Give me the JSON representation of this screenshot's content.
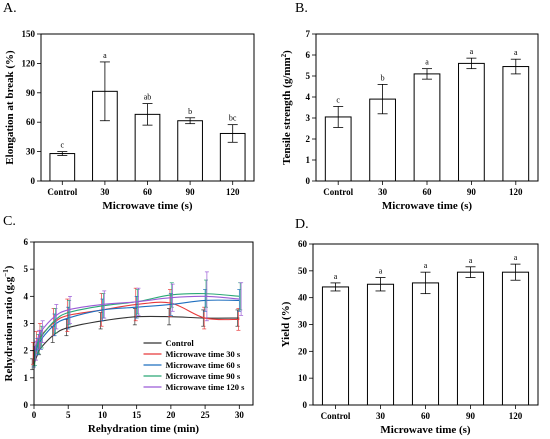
{
  "chart_data": [
    {
      "panel": "A.",
      "type": "bar",
      "categories": [
        "Control",
        "30",
        "60",
        "90",
        "120"
      ],
      "values": [
        28,
        91.5,
        68,
        61.5,
        48.5
      ],
      "errors": [
        2,
        30,
        11,
        3,
        9
      ],
      "letters": [
        "c",
        "a",
        "ab",
        "b",
        "bc"
      ],
      "xlabel": "Microwave time (s)",
      "ylabel": "Elongation at break (%)",
      "ylim": [
        0,
        150
      ],
      "yticks": [
        "0",
        "30",
        "60",
        "90",
        "120",
        "150"
      ],
      "bar_color": "#ffffff"
    },
    {
      "panel": "B.",
      "type": "bar",
      "categories": [
        "Control",
        "30",
        "60",
        "90",
        "120"
      ],
      "values": [
        3.05,
        3.9,
        5.1,
        5.6,
        5.45
      ],
      "errors": [
        0.5,
        0.7,
        0.25,
        0.25,
        0.35
      ],
      "letters": [
        "c",
        "b",
        "a",
        "a",
        "a"
      ],
      "xlabel": "Microwave time (s)",
      "ylabel_parts": [
        "Tensile strength (g/mm",
        "2",
        ")"
      ],
      "ylim": [
        0,
        7
      ],
      "yticks": [
        "0",
        "1",
        "2",
        "3",
        "4",
        "5",
        "6",
        "7"
      ],
      "bar_color": "#ffffff"
    },
    {
      "panel": "C.",
      "type": "line",
      "x": [
        0,
        0.5,
        1,
        3,
        5,
        10,
        15,
        20,
        25,
        30
      ],
      "xlabel": "Rehydration time (min)",
      "ylabel_parts": [
        "Rehydration ratio (g.g",
        "−1",
        ")"
      ],
      "xlim": [
        0,
        32
      ],
      "ylim": [
        0,
        6
      ],
      "xticks": [
        "0",
        "5",
        "10",
        "15",
        "20",
        "25",
        "30"
      ],
      "yticks": [
        "0",
        "1",
        "2",
        "3",
        "4",
        "5",
        "6"
      ],
      "legend_position": "bottom-right",
      "series": [
        {
          "name": "Control",
          "color": "#333333",
          "values": [
            1.5,
            1.85,
            2.1,
            2.6,
            2.85,
            3.1,
            3.25,
            3.25,
            3.2,
            3.2
          ],
          "errors": [
            0.2,
            0.2,
            0.25,
            0.3,
            0.3,
            0.3,
            0.3,
            0.3,
            0.3,
            0.3
          ]
        },
        {
          "name": "Microwave time 30 s",
          "color": "#e8393a",
          "values": [
            1.9,
            2.3,
            2.55,
            3.05,
            3.3,
            3.5,
            3.7,
            3.75,
            3.2,
            3.15
          ],
          "errors": [
            0.4,
            0.4,
            0.45,
            0.5,
            0.6,
            0.6,
            0.6,
            0.5,
            0.4,
            0.4
          ]
        },
        {
          "name": "Microwave time 60 s",
          "color": "#1f6fbf",
          "values": [
            1.7,
            2.15,
            2.4,
            2.95,
            3.2,
            3.5,
            3.6,
            3.7,
            3.85,
            3.85
          ],
          "errors": [
            0.3,
            0.3,
            0.35,
            0.4,
            0.4,
            0.4,
            0.4,
            0.4,
            0.4,
            0.4
          ]
        },
        {
          "name": "Microwave time 90 s",
          "color": "#2aa876",
          "values": [
            1.8,
            2.25,
            2.5,
            3.1,
            3.4,
            3.65,
            3.8,
            4.05,
            4.1,
            4.0
          ],
          "errors": [
            0.35,
            0.35,
            0.4,
            0.45,
            0.45,
            0.45,
            0.45,
            0.45,
            0.5,
            0.5
          ]
        },
        {
          "name": "Microwave time 120 s",
          "color": "#9b5bd6",
          "values": [
            2.0,
            2.4,
            2.7,
            3.25,
            3.5,
            3.7,
            3.8,
            3.95,
            4.0,
            3.9
          ],
          "errors": [
            0.35,
            0.35,
            0.4,
            0.45,
            0.5,
            0.5,
            0.5,
            0.5,
            0.9,
            0.6
          ]
        }
      ]
    },
    {
      "panel": "D.",
      "type": "bar",
      "categories": [
        "Control",
        "30",
        "60",
        "90",
        "120"
      ],
      "values": [
        44,
        45,
        45.5,
        49.5,
        49.5
      ],
      "errors": [
        1.5,
        2.5,
        4,
        2,
        3
      ],
      "letters": [
        "a",
        "a",
        "a",
        "a",
        "a"
      ],
      "xlabel": "Microwave time (s)",
      "ylabel": "Yield (%)",
      "ylim": [
        0,
        60
      ],
      "yticks": [
        "0",
        "10",
        "20",
        "30",
        "40",
        "50",
        "60"
      ],
      "bar_color": "#ffffff"
    }
  ]
}
